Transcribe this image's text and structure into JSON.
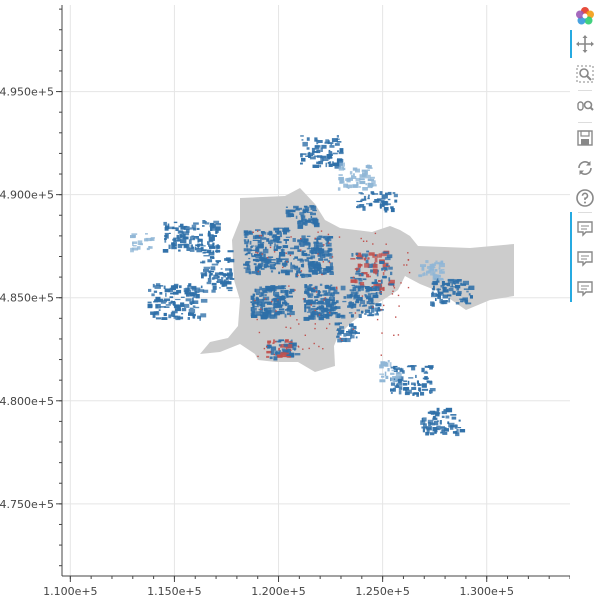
{
  "plot": {
    "x_axis": {
      "range": [
        109600,
        134000
      ],
      "ticks": [
        {
          "value": 110000,
          "label": "1.100e+5"
        },
        {
          "value": 115000,
          "label": "1.150e+5"
        },
        {
          "value": 120000,
          "label": "1.200e+5"
        },
        {
          "value": 125000,
          "label": "1.250e+5"
        },
        {
          "value": 130000,
          "label": "1.300e+5"
        }
      ]
    },
    "y_axis": {
      "range": [
        471500,
        499200
      ],
      "ticks": [
        {
          "value": 475000,
          "label": "4.750e+5"
        },
        {
          "value": 480000,
          "label": "4.800e+5"
        },
        {
          "value": 485000,
          "label": "4.850e+5"
        },
        {
          "value": 490000,
          "label": "4.900e+5"
        },
        {
          "value": 495000,
          "label": "4.950e+5"
        }
      ]
    },
    "grid": true,
    "colors": {
      "region": "#cccccc",
      "buildings_primary": "#2e6fa8",
      "buildings_light": "#8fb6d6",
      "buildings_red": "#c0504d",
      "grid": "#e5e5e5",
      "axis": "#444444"
    }
  },
  "toolbar": {
    "logo": "bokeh-logo-icon",
    "tools": [
      {
        "name": "pan-tool",
        "icon": "move-icon",
        "active": true
      },
      {
        "name": "box-zoom-tool",
        "icon": "box-zoom-icon",
        "active": false
      },
      {
        "name": "wheel-zoom-tool",
        "icon": "wheel-zoom-icon",
        "active": false
      },
      {
        "name": "save-tool",
        "icon": "save-icon",
        "active": false
      },
      {
        "name": "reset-tool",
        "icon": "reset-icon",
        "active": false
      },
      {
        "name": "help-tool",
        "icon": "help-icon",
        "active": false
      },
      {
        "name": "hover-tool-1",
        "icon": "hover-icon",
        "active": true
      },
      {
        "name": "hover-tool-2",
        "icon": "hover-icon",
        "active": true
      },
      {
        "name": "hover-tool-3",
        "icon": "hover-icon",
        "active": true
      }
    ]
  }
}
